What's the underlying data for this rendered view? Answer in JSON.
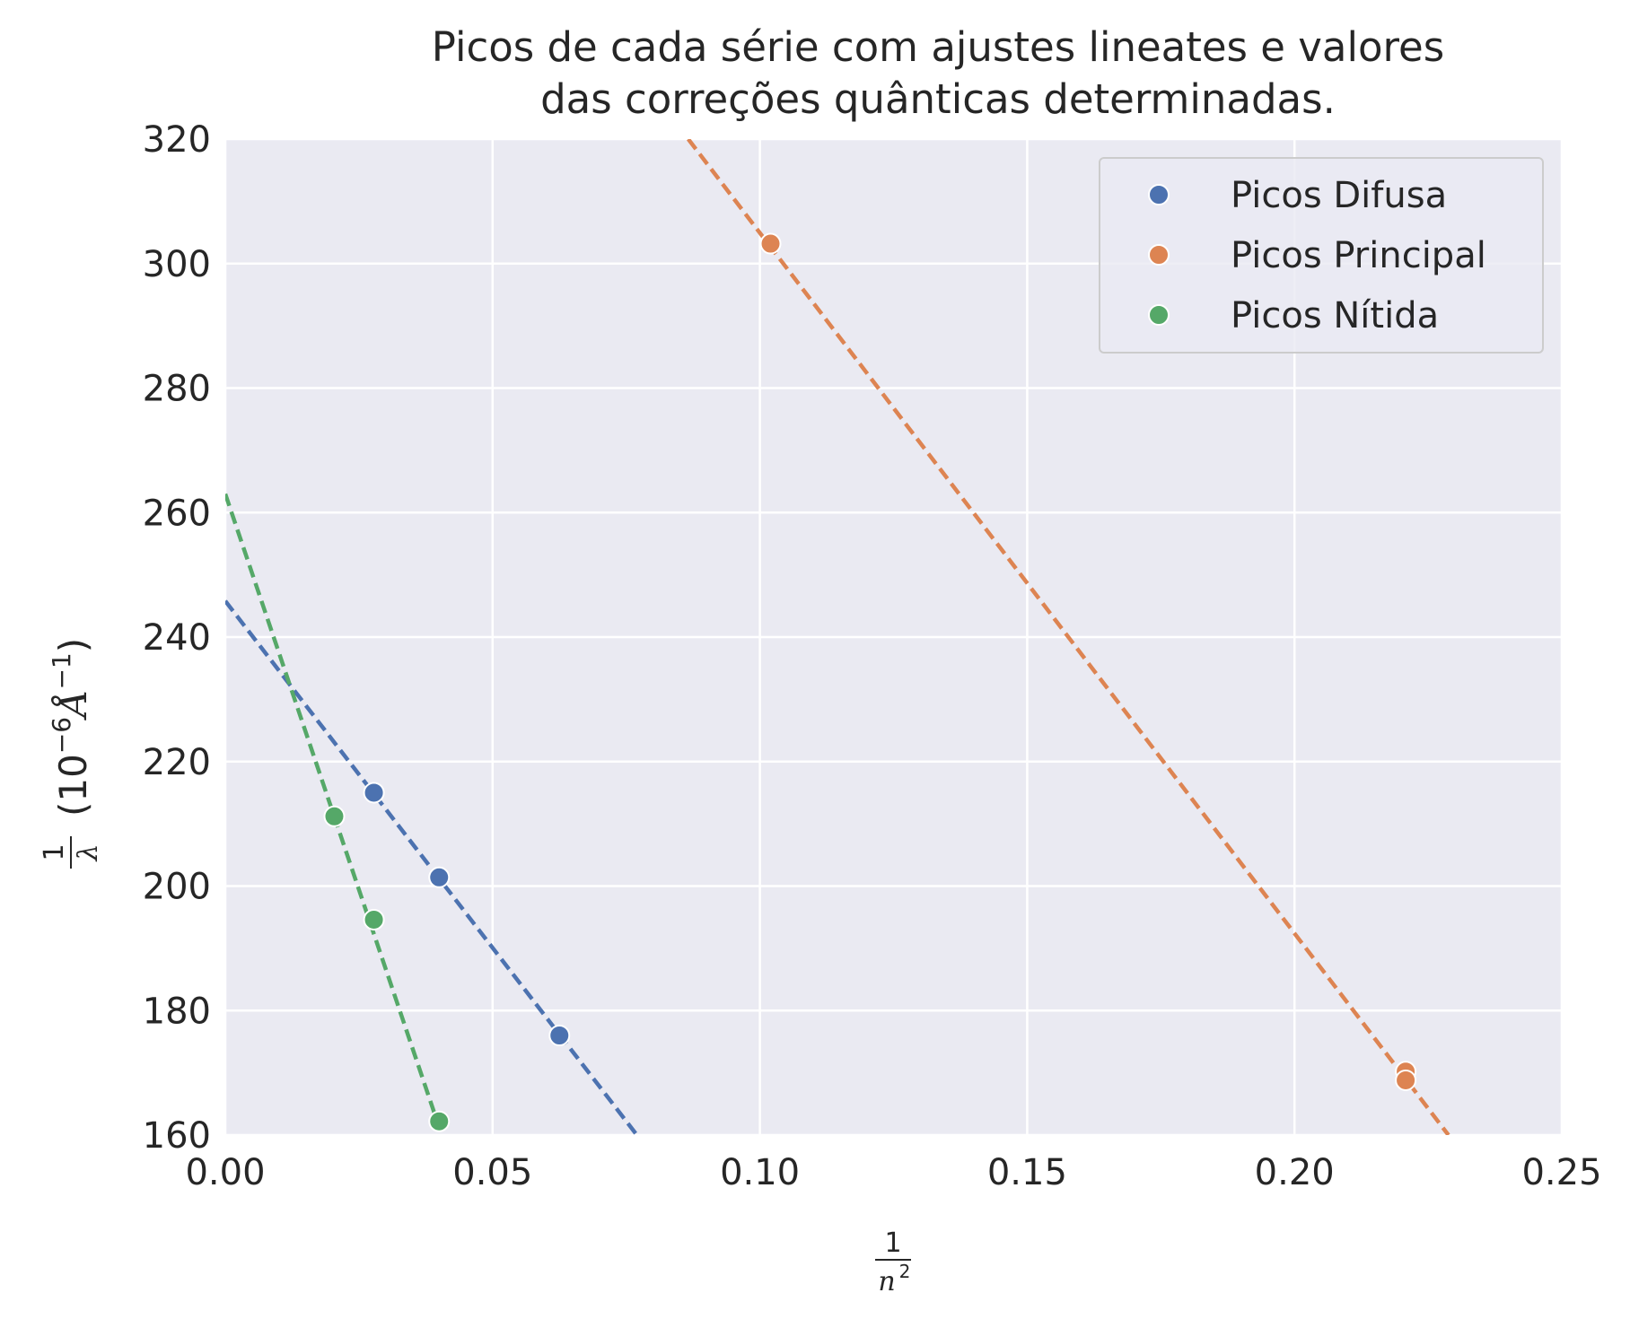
{
  "chart_data": {
    "type": "scatter",
    "title_lines": [
      "Picos de cada série com ajustes lineates e valores",
      "das correções quânticas determinadas."
    ],
    "xlabel": {
      "numerator": "1",
      "denominator_base": "n",
      "denominator_exp": "2"
    },
    "ylabel": {
      "numerator": "1",
      "denominator": "λ",
      "units": "(10",
      "units_exp": "−6",
      "units_unit": "Å",
      "units_unit_exp": "−1",
      "units_close": ")"
    },
    "xlim": [
      0.0,
      0.25
    ],
    "ylim": [
      160,
      320
    ],
    "xticks": [
      0.0,
      0.05,
      0.1,
      0.15,
      0.2,
      0.25
    ],
    "xtick_labels": [
      "0.00",
      "0.05",
      "0.10",
      "0.15",
      "0.20",
      "0.25"
    ],
    "yticks": [
      160,
      180,
      200,
      220,
      240,
      260,
      280,
      300,
      320
    ],
    "ytick_labels": [
      "160",
      "180",
      "200",
      "220",
      "240",
      "260",
      "280",
      "300",
      "320"
    ],
    "grid": true,
    "background": "#eaeaf2",
    "legend_position": "top-right",
    "series": [
      {
        "name": "Picos Difusa",
        "color": "#4c72b0",
        "points": [
          [
            0.0278,
            215.0
          ],
          [
            0.04,
            201.4
          ],
          [
            0.0625,
            176.0
          ]
        ],
        "fit": {
          "x0": 0.0,
          "y0": 245.8,
          "x1": 0.077,
          "y1": 160.0
        }
      },
      {
        "name": "Picos Principal",
        "color": "#dd8452",
        "points": [
          [
            0.102,
            303.2
          ],
          [
            0.2208,
            170.2
          ],
          [
            0.2208,
            168.8
          ]
        ],
        "fit": {
          "x0": 0.0866,
          "y0": 320.0,
          "x1": 0.2288,
          "y1": 160.0
        }
      },
      {
        "name": "Picos Nítida",
        "color": "#55a868",
        "points": [
          [
            0.0204,
            211.2
          ],
          [
            0.0278,
            194.6
          ],
          [
            0.04,
            162.2
          ]
        ],
        "fit": {
          "x0": 0.0,
          "y0": 263.0,
          "x1": 0.0405,
          "y1": 160.0
        }
      }
    ]
  }
}
